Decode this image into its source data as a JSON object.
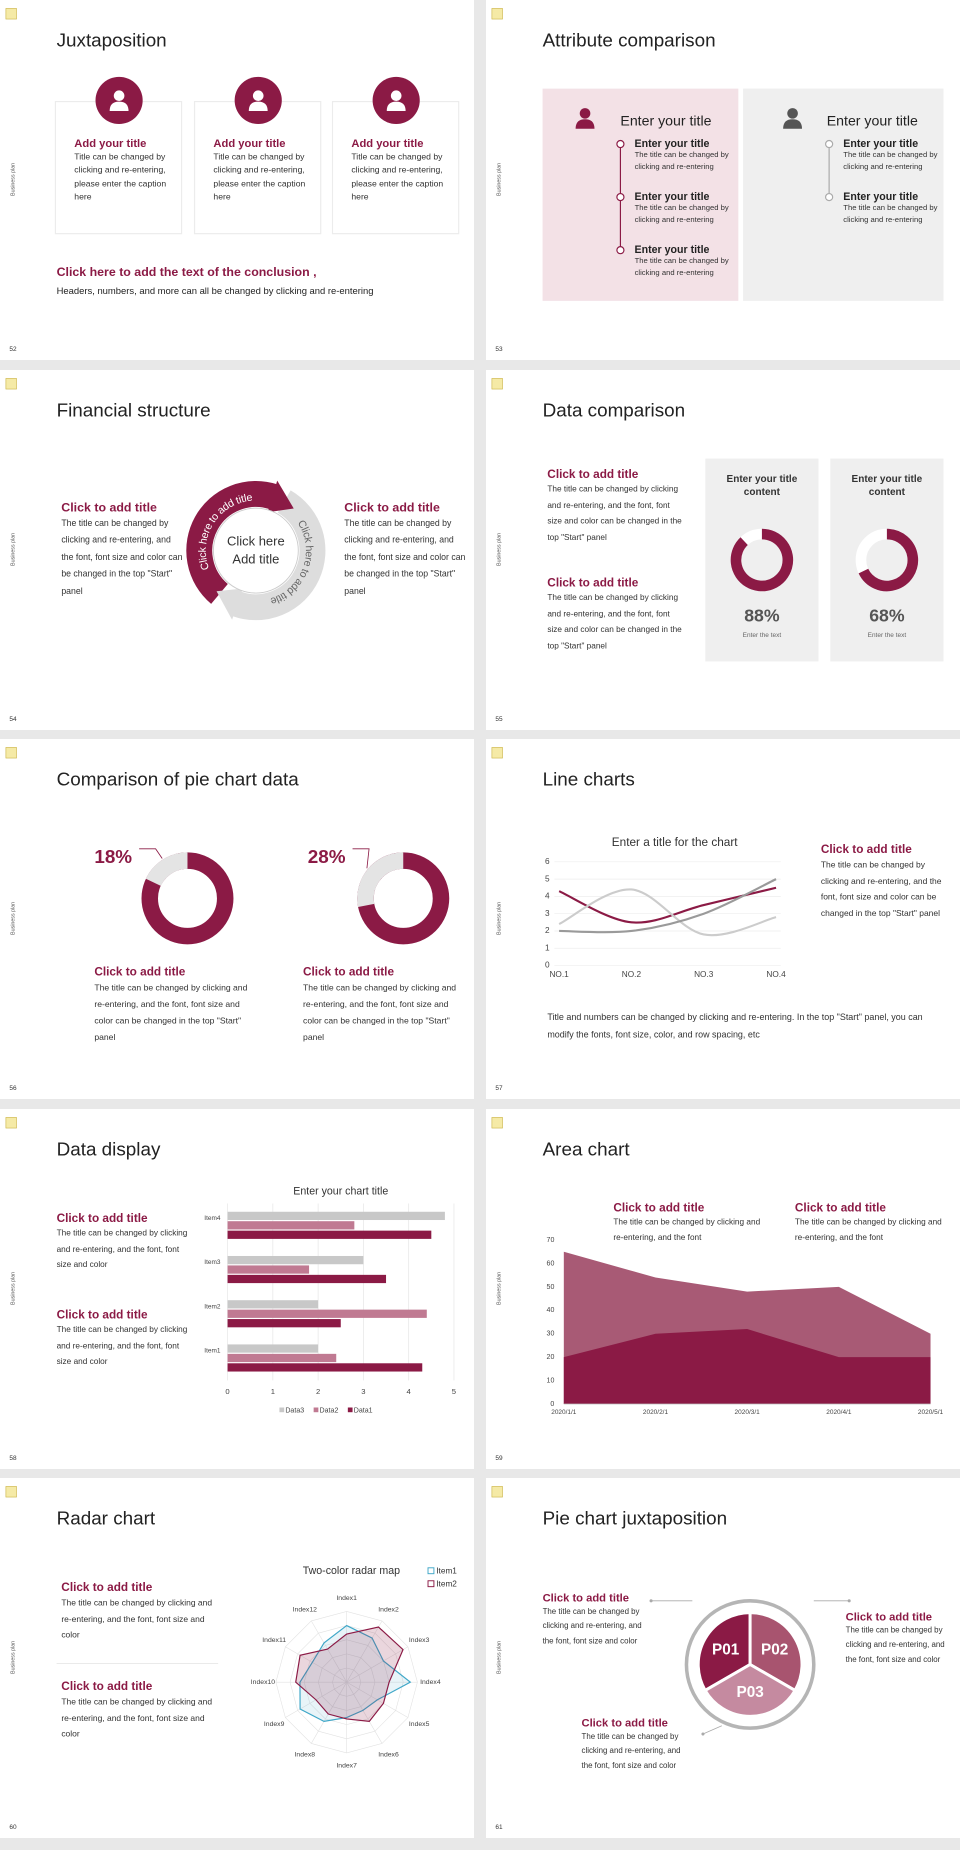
{
  "slides": [
    {
      "number": "52",
      "side": "Business plan",
      "title": "Juxtaposition",
      "cards": [
        {
          "title": "Add your title",
          "text": "Title can be changed by clicking and re-entering, please enter the caption here"
        },
        {
          "title": "Add your title",
          "text": "Title can be changed by clicking and re-entering, please enter the caption here"
        },
        {
          "title": "Add your title",
          "text": "Title can be changed by clicking and re-entering, please enter the caption here"
        }
      ],
      "conclusion": {
        "title": "Click here to add the text of the conclusion ,",
        "text": "Headers, numbers, and more can all be changed by clicking and re-entering"
      }
    },
    {
      "number": "53",
      "side": "Business plan",
      "title": "Attribute comparison",
      "panels": [
        {
          "heading": "Enter your title",
          "items": [
            {
              "title": "Enter your title",
              "text": "The title can be changed by clicking and re-entering"
            },
            {
              "title": "Enter your title",
              "text": "The title can be changed by clicking and re-entering"
            },
            {
              "title": "Enter your title",
              "text": "The title can be changed by clicking and re-entering"
            }
          ]
        },
        {
          "heading": "Enter your title",
          "items": [
            {
              "title": "Enter your title",
              "text": "The title can be changed by clicking and re-entering"
            },
            {
              "title": "Enter your title",
              "text": "The title can be changed by clicking and re-entering"
            }
          ]
        }
      ]
    },
    {
      "number": "54",
      "side": "Business plan",
      "title": "Financial structure",
      "blocks": [
        {
          "title": "Click to add title",
          "text": "The title can be changed by clicking and re-entering, and the font, font size and color can be changed in the top \"Start\" panel"
        },
        {
          "title": "Click to add title",
          "text": "The title can be changed by clicking and re-entering, and the font, font size and color can be changed in the top \"Start\" panel"
        }
      ],
      "arc_labels": [
        "Click here to add title",
        "Click here to add title"
      ],
      "center": [
        "Click here",
        "Add title"
      ]
    },
    {
      "number": "55",
      "side": "Business plan",
      "title": "Data comparison",
      "blocks": [
        {
          "title": "Click to add title",
          "text": "The title can be changed by clicking and re-entering, and the font, font size and color can be changed in the top \"Start\" panel"
        },
        {
          "title": "Click to add title",
          "text": "The title can be changed by clicking and re-entering, and the font, font size and color can be changed in the top \"Start\" panel"
        }
      ],
      "panels": [
        {
          "title": "Enter your title content",
          "value": 88,
          "value_label": "88%",
          "caption": "Enter the text"
        },
        {
          "title": "Enter your title content",
          "value": 68,
          "value_label": "68%",
          "caption": "Enter the text"
        }
      ]
    },
    {
      "number": "56",
      "side": "Business plan",
      "title": "Comparison of pie chart data",
      "items": [
        {
          "value": 18,
          "value_label": "18%",
          "title": "Click to add title",
          "text": "The title can be changed by clicking and re-entering, and the font, font size and color can be changed in the top \"Start\" panel"
        },
        {
          "value": 28,
          "value_label": "28%",
          "title": "Click to add title",
          "text": "The title can be changed by clicking and re-entering, and the font, font size and color can be changed in the top \"Start\" panel"
        }
      ]
    },
    {
      "number": "57",
      "side": "Business plan",
      "title": "Line charts",
      "chart": {
        "type": "line",
        "title": "Enter a title for the chart",
        "categories": [
          "NO.1",
          "NO.2",
          "NO.3",
          "NO.4"
        ],
        "ylim": [
          0,
          6
        ],
        "yticks": [
          0,
          1,
          2,
          3,
          4,
          5,
          6
        ],
        "grid": true,
        "series": [
          {
            "color": "#8b1a45",
            "values": [
              4.3,
              2.5,
              3.5,
              4.5
            ]
          },
          {
            "color": "#cccccc",
            "values": [
              2.4,
              4.4,
              1.8,
              2.8
            ]
          },
          {
            "color": "#9a9a9a",
            "values": [
              2,
              2,
              3,
              5
            ]
          }
        ]
      },
      "block": {
        "title": "Click to add title",
        "text": "The title can be changed by clicking and re-entering, and the font, font size and color can be changed in the top \"Start\" panel"
      },
      "note": "Title and numbers can be changed by clicking and re-entering. In the top \"Start\" panel, you can modify the fonts, font size, color, and row spacing, etc"
    },
    {
      "number": "58",
      "side": "Business plan",
      "title": "Data display",
      "chart": {
        "type": "bar",
        "orientation": "horizontal",
        "title": "Enter your chart title",
        "categories": [
          "Item1",
          "Item2",
          "Item3",
          "Item4"
        ],
        "xlim": [
          0,
          5
        ],
        "xticks": [
          0,
          1,
          2,
          3,
          4,
          5
        ],
        "grid": true,
        "series": [
          {
            "name": "Data3",
            "color": "#c8c8c8",
            "values": [
              2,
              2,
              3,
              4.8
            ]
          },
          {
            "name": "Data2",
            "color": "#c07a92",
            "values": [
              2.4,
              4.4,
              1.8,
              2.8
            ]
          },
          {
            "name": "Data1",
            "color": "#8b1a45",
            "values": [
              4.3,
              2.5,
              3.5,
              4.5
            ]
          }
        ]
      },
      "blocks": [
        {
          "title": "Click to add title",
          "text": "The title can be changed by clicking and re-entering, and the font, font size and color"
        },
        {
          "title": "Click to add title",
          "text": "The title can be changed by clicking and re-entering, and the font, font size and color"
        }
      ]
    },
    {
      "number": "59",
      "side": "Business plan",
      "title": "Area chart",
      "chart": {
        "type": "area",
        "x": [
          "2020/1/1",
          "2020/2/1",
          "2020/3/1",
          "2020/4/1",
          "2020/5/1"
        ],
        "ylim": [
          0,
          70
        ],
        "yticks": [
          0,
          10,
          20,
          30,
          40,
          50,
          60,
          70
        ],
        "series": [
          {
            "color": "#a85a75",
            "values": [
              65,
              54,
              48,
              50,
              30
            ]
          },
          {
            "color": "#8b1a45",
            "values": [
              20,
              30,
              32,
              20,
              20
            ]
          }
        ]
      },
      "blocks": [
        {
          "title": "Click to add title",
          "text": "The title can be changed by clicking and re-entering, and the font"
        },
        {
          "title": "Click to add title",
          "text": "The title can be changed by clicking and re-entering, and the font"
        }
      ]
    },
    {
      "number": "60",
      "side": "Business plan",
      "title": "Radar chart",
      "chart": {
        "type": "radar",
        "title": "Two-color radar map",
        "categories": [
          "Index1",
          "Index2",
          "Index3",
          "Index4",
          "Index5",
          "Index6",
          "Index7",
          "Index8",
          "Index9",
          "Index10",
          "Index11",
          "Index12"
        ],
        "rlim": [
          0,
          5
        ],
        "series": [
          {
            "name": "Item1",
            "color": "#3fa7c8",
            "values": [
              4,
              3.6,
              3,
              4.5,
              2.5,
              2.3,
              2.5,
              3.2,
              3.8,
              3.3,
              2.8,
              3.2
            ]
          },
          {
            "name": "Item2",
            "color": "#8b1a45",
            "values": [
              3.4,
              4.5,
              4.6,
              3,
              3,
              3.2,
              2.6,
              2.6,
              2.5,
              3.6,
              3.8,
              2.7
            ]
          }
        ]
      },
      "blocks": [
        {
          "title": "Click to add title",
          "text": "The title can be changed by clicking and re-entering, and the font, font size and color"
        },
        {
          "title": "Click to add title",
          "text": "The title can be changed by clicking and re-entering, and the font, font size and color"
        }
      ]
    },
    {
      "number": "61",
      "side": "Business plan",
      "title": "Pie chart juxtaposition",
      "segments": [
        "P01",
        "P02",
        "P03"
      ],
      "blocks": [
        {
          "title": "Click to add title",
          "text": "The title can be changed by clicking and re-entering, and the font, font size and color"
        },
        {
          "title": "Click to add title",
          "text": "The title can be changed by clicking and re-entering, and the font, font size and color"
        },
        {
          "title": "Click to add title",
          "text": "The title can be changed by clicking and re-entering, and the font, font size and color"
        }
      ]
    }
  ]
}
